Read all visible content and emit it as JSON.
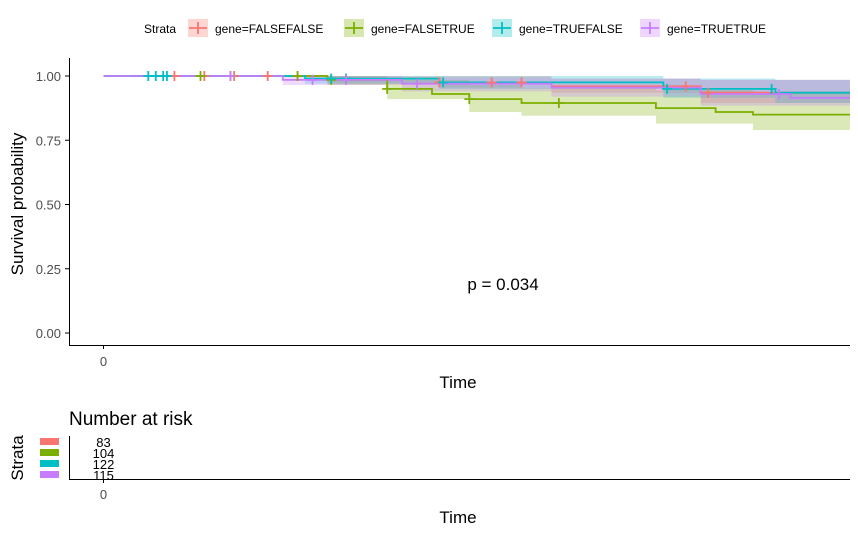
{
  "legend": {
    "title": "Strata",
    "items": [
      {
        "label": "gene=FALSEFALSE",
        "color": "#F8766D"
      },
      {
        "label": "gene=FALSETRUE",
        "color": "#7CAE00"
      },
      {
        "label": "gene=TRUEFALSE",
        "color": "#00BFC4"
      },
      {
        "label": "gene=TRUETRUE",
        "color": "#C77CFF"
      }
    ]
  },
  "chart_data": {
    "type": "line",
    "subtype": "kaplan-meier",
    "ylabel": "Survival probability",
    "xlabel": "Time",
    "ylim": [
      0,
      1
    ],
    "yticks": [
      "0.00",
      "0.25",
      "0.50",
      "0.75",
      "1.00"
    ],
    "xticks": [
      "0"
    ],
    "pvalue_text": "p = 0.034",
    "grid": false,
    "legend_position": "top",
    "series": [
      {
        "name": "gene=FALSEFALSE",
        "color": "#F8766D",
        "steps": [
          [
            0,
            1.0
          ],
          [
            0.3,
            1.0
          ],
          [
            0.3,
            0.99
          ],
          [
            0.45,
            0.99
          ],
          [
            0.45,
            0.975
          ],
          [
            0.6,
            0.975
          ],
          [
            0.6,
            0.96
          ],
          [
            0.8,
            0.96
          ],
          [
            0.8,
            0.935
          ],
          [
            1.0,
            0.935
          ]
        ],
        "ci": [
          [
            0,
            1.0,
            1.0
          ],
          [
            0.3,
            1.0,
            0.97
          ],
          [
            0.45,
            1.0,
            0.955
          ],
          [
            0.6,
            0.99,
            0.935
          ],
          [
            0.8,
            0.985,
            0.895
          ],
          [
            1.0,
            0.985,
            0.885
          ]
        ],
        "censor": [
          0.095,
          0.135,
          0.175,
          0.22,
          0.26,
          0.45,
          0.52,
          0.56,
          0.78,
          0.81
        ]
      },
      {
        "name": "gene=FALSETRUE",
        "color": "#7CAE00",
        "steps": [
          [
            0,
            1.0
          ],
          [
            0.3,
            1.0
          ],
          [
            0.3,
            0.985
          ],
          [
            0.38,
            0.985
          ],
          [
            0.38,
            0.95
          ],
          [
            0.44,
            0.95
          ],
          [
            0.44,
            0.93
          ],
          [
            0.49,
            0.93
          ],
          [
            0.49,
            0.91
          ],
          [
            0.56,
            0.91
          ],
          [
            0.56,
            0.895
          ],
          [
            0.74,
            0.895
          ],
          [
            0.74,
            0.875
          ],
          [
            0.82,
            0.875
          ],
          [
            0.82,
            0.86
          ],
          [
            0.87,
            0.86
          ],
          [
            0.87,
            0.85
          ],
          [
            1.0,
            0.85
          ]
        ],
        "ci": [
          [
            0,
            1.0,
            1.0
          ],
          [
            0.3,
            1.0,
            0.965
          ],
          [
            0.38,
            0.985,
            0.91
          ],
          [
            0.49,
            0.965,
            0.86
          ],
          [
            0.56,
            0.955,
            0.845
          ],
          [
            0.74,
            0.945,
            0.815
          ],
          [
            0.87,
            0.935,
            0.79
          ],
          [
            1.0,
            0.935,
            0.785
          ]
        ],
        "censor": [
          0.13,
          0.17,
          0.26,
          0.305,
          0.38,
          0.49,
          0.61
        ]
      },
      {
        "name": "gene=TRUEFALSE",
        "color": "#00BFC4",
        "steps": [
          [
            0,
            1.0
          ],
          [
            0.27,
            1.0
          ],
          [
            0.27,
            0.99
          ],
          [
            0.45,
            0.99
          ],
          [
            0.45,
            0.975
          ],
          [
            0.75,
            0.975
          ],
          [
            0.75,
            0.95
          ],
          [
            0.9,
            0.95
          ],
          [
            0.9,
            0.935
          ],
          [
            1.0,
            0.935
          ]
        ],
        "ci": [
          [
            0,
            1.0,
            1.0
          ],
          [
            0.27,
            1.0,
            0.97
          ],
          [
            0.45,
            1.0,
            0.95
          ],
          [
            0.75,
            0.99,
            0.915
          ],
          [
            0.9,
            0.985,
            0.895
          ],
          [
            1.0,
            0.985,
            0.89
          ]
        ],
        "censor": [
          0.06,
          0.07,
          0.08,
          0.085,
          0.305,
          0.325,
          0.455,
          0.755,
          0.895
        ]
      },
      {
        "name": "gene=TRUETRUE",
        "color": "#C77CFF",
        "steps": [
          [
            0,
            1.0
          ],
          [
            0.24,
            1.0
          ],
          [
            0.24,
            0.985
          ],
          [
            0.4,
            0.985
          ],
          [
            0.4,
            0.97
          ],
          [
            0.6,
            0.97
          ],
          [
            0.6,
            0.955
          ],
          [
            0.8,
            0.955
          ],
          [
            0.8,
            0.93
          ],
          [
            0.92,
            0.93
          ],
          [
            0.92,
            0.915
          ],
          [
            1.0,
            0.915
          ]
        ],
        "ci": [
          [
            0,
            1.0,
            1.0
          ],
          [
            0.24,
            1.0,
            0.965
          ],
          [
            0.4,
            0.995,
            0.94
          ],
          [
            0.6,
            0.99,
            0.92
          ],
          [
            0.8,
            0.985,
            0.885
          ],
          [
            1.0,
            0.98,
            0.865
          ]
        ],
        "censor": [
          0.17,
          0.28,
          0.325,
          0.42,
          0.905
        ]
      }
    ]
  },
  "risk_table": {
    "title": "Number at risk",
    "ylabel": "Strata",
    "xlabel": "Time",
    "xticks": [
      "0"
    ],
    "rows": [
      {
        "name": "gene=FALSEFALSE",
        "color": "#F8766D",
        "value": "83"
      },
      {
        "name": "gene=FALSETRUE",
        "color": "#7CAE00",
        "value": "104"
      },
      {
        "name": "gene=TRUEFALSE",
        "color": "#00BFC4",
        "value": "122"
      },
      {
        "name": "gene=TRUETRUE",
        "color": "#C77CFF",
        "value": "115"
      }
    ]
  }
}
